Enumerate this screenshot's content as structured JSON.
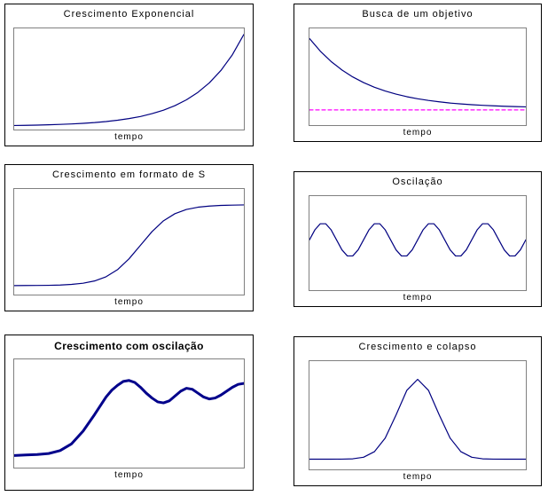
{
  "page": {
    "background": "#ffffff"
  },
  "chart_data": [
    {
      "id": "exponential-growth",
      "type": "line",
      "title": "Crescimento Exponencial",
      "xlabel": "tempo",
      "x_range": [
        0,
        1
      ],
      "y_range": [
        0,
        1
      ],
      "grid": false,
      "legend": "none",
      "series": [
        {
          "name": "crescimento-exponencial",
          "color": "#000080",
          "width": 1.2,
          "dash": false,
          "y": [
            0,
            0.002,
            0.004,
            0.008,
            0.012,
            0.017,
            0.024,
            0.032,
            0.043,
            0.058,
            0.076,
            0.099,
            0.13,
            0.168,
            0.218,
            0.282,
            0.364,
            0.469,
            0.604,
            0.777,
            1.0
          ]
        }
      ]
    },
    {
      "id": "goal-seeking",
      "type": "line",
      "title": "Busca de um objetivo",
      "xlabel": "tempo",
      "x_range": [
        0,
        1
      ],
      "y_range": [
        0,
        1
      ],
      "grid": false,
      "legend": "none",
      "series": [
        {
          "name": "busca-objetivo",
          "color": "#000080",
          "width": 1.2,
          "dash": false,
          "y": [
            0.95,
            0.805,
            0.686,
            0.589,
            0.509,
            0.444,
            0.391,
            0.347,
            0.312,
            0.282,
            0.258,
            0.239,
            0.223,
            0.209,
            0.199,
            0.19,
            0.183,
            0.177,
            0.172,
            0.168,
            0.165
          ]
        },
        {
          "name": "objetivo-meta-tracejada",
          "color": "#FF00FF",
          "width": 1.2,
          "dash": true,
          "x": [
            0,
            1
          ],
          "y": [
            0.13,
            0.13
          ]
        }
      ]
    },
    {
      "id": "s-shaped-growth",
      "type": "line",
      "title": "Crescimento em formato de S",
      "xlabel": "tempo",
      "x_range": [
        0,
        1
      ],
      "y_range": [
        0,
        1
      ],
      "grid": false,
      "legend": "none",
      "series": [
        {
          "name": "crescimento-s",
          "color": "#000080",
          "width": 1.2,
          "dash": false,
          "y": [
            0.05,
            0.051,
            0.052,
            0.053,
            0.056,
            0.063,
            0.075,
            0.099,
            0.143,
            0.218,
            0.332,
            0.475,
            0.618,
            0.732,
            0.807,
            0.851,
            0.875,
            0.887,
            0.894,
            0.897,
            0.899
          ]
        }
      ]
    },
    {
      "id": "oscillation",
      "type": "line",
      "title": "Oscilação",
      "xlabel": "tempo",
      "x_range": [
        0,
        1
      ],
      "y_range": [
        0,
        1
      ],
      "grid": false,
      "legend": "none",
      "series": [
        {
          "name": "oscilacao",
          "color": "#000080",
          "width": 1.2,
          "dash": false,
          "y": [
            0.55,
            0.668,
            0.74,
            0.74,
            0.668,
            0.55,
            0.432,
            0.36,
            0.36,
            0.432,
            0.55,
            0.668,
            0.74,
            0.74,
            0.668,
            0.55,
            0.432,
            0.36,
            0.36,
            0.432,
            0.55,
            0.668,
            0.74,
            0.74,
            0.668,
            0.55,
            0.432,
            0.36,
            0.36,
            0.432,
            0.55,
            0.668,
            0.74,
            0.74,
            0.668,
            0.55,
            0.432,
            0.36,
            0.36,
            0.432,
            0.55
          ]
        }
      ]
    },
    {
      "id": "growth-with-oscillation",
      "type": "line",
      "title": "Crescimento com oscilação",
      "title_bold": true,
      "xlabel": "tempo",
      "x_range": [
        0,
        1
      ],
      "y_range": [
        0,
        1
      ],
      "grid": false,
      "legend": "none",
      "series": [
        {
          "name": "crescimento-com-oscilacao",
          "color": "#00008B",
          "width": 3,
          "dash": false,
          "x": [
            0,
            0.05,
            0.1,
            0.15,
            0.2,
            0.25,
            0.3,
            0.35,
            0.4,
            0.425,
            0.45,
            0.475,
            0.5,
            0.525,
            0.55,
            0.575,
            0.6,
            0.625,
            0.65,
            0.675,
            0.7,
            0.725,
            0.75,
            0.775,
            0.8,
            0.825,
            0.85,
            0.875,
            0.9,
            0.925,
            0.95,
            0.975,
            1
          ],
          "y": [
            0.08,
            0.085,
            0.09,
            0.1,
            0.13,
            0.2,
            0.33,
            0.5,
            0.68,
            0.75,
            0.8,
            0.84,
            0.85,
            0.83,
            0.78,
            0.72,
            0.67,
            0.63,
            0.62,
            0.64,
            0.69,
            0.74,
            0.77,
            0.76,
            0.72,
            0.68,
            0.66,
            0.67,
            0.7,
            0.74,
            0.78,
            0.81,
            0.82
          ]
        }
      ]
    },
    {
      "id": "growth-and-collapse",
      "type": "line",
      "title": "Crescimento e colapso",
      "xlabel": "tempo",
      "x_range": [
        0,
        1
      ],
      "y_range": [
        0,
        1
      ],
      "grid": false,
      "legend": "none",
      "series": [
        {
          "name": "crescimento-e-colapso",
          "color": "#000080",
          "width": 1.2,
          "dash": false,
          "y": [
            0.06,
            0.06,
            0.06,
            0.061,
            0.064,
            0.08,
            0.137,
            0.277,
            0.513,
            0.767,
            0.88,
            0.767,
            0.513,
            0.277,
            0.137,
            0.08,
            0.064,
            0.061,
            0.06,
            0.06,
            0.06
          ]
        }
      ]
    }
  ]
}
